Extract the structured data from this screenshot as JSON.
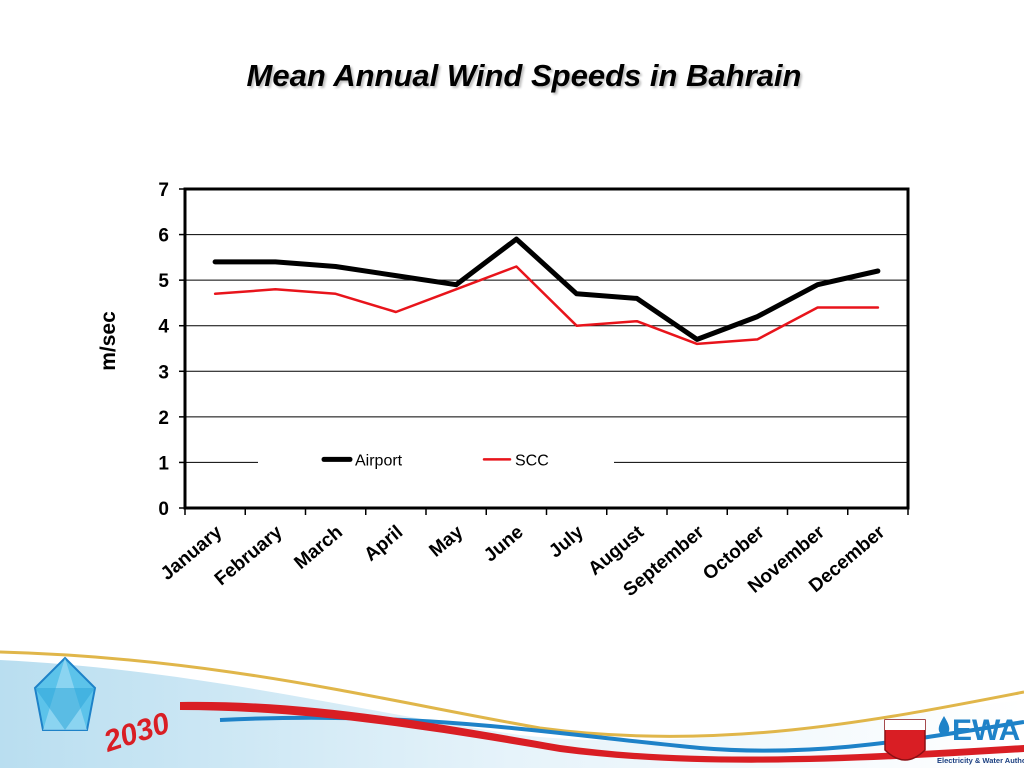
{
  "slide": {
    "title": "Mean Annual Wind Speeds in Bahrain"
  },
  "chart_data": {
    "type": "line",
    "title": "",
    "xlabel": "",
    "ylabel": "m/sec",
    "ylim": [
      0,
      7
    ],
    "yticks": [
      0,
      1,
      2,
      3,
      4,
      5,
      6,
      7
    ],
    "grid": true,
    "legend": "inside-lower-center",
    "categories": [
      "January",
      "February",
      "March",
      "April",
      "May",
      "June",
      "July",
      "August",
      "September",
      "October",
      "November",
      "December"
    ],
    "series": [
      {
        "name": "Airport",
        "color": "#000000",
        "values": [
          5.4,
          5.4,
          5.3,
          5.1,
          4.9,
          5.9,
          4.7,
          4.6,
          3.7,
          4.2,
          4.9,
          5.2
        ]
      },
      {
        "name": "SCC",
        "color": "#e8141b",
        "values": [
          4.7,
          4.8,
          4.7,
          4.3,
          4.8,
          5.3,
          4.0,
          4.1,
          3.6,
          3.7,
          4.4,
          4.4
        ]
      }
    ]
  },
  "footer": {
    "vision_logo_text": "2030",
    "org_logo_text": "EWA",
    "org_name_en": "Electricity & Water Authority",
    "brand_colors": {
      "red": "#d91e24",
      "blue": "#1e82c8",
      "gold": "#e0b64a",
      "light_blue": "#9fd3ea"
    }
  }
}
